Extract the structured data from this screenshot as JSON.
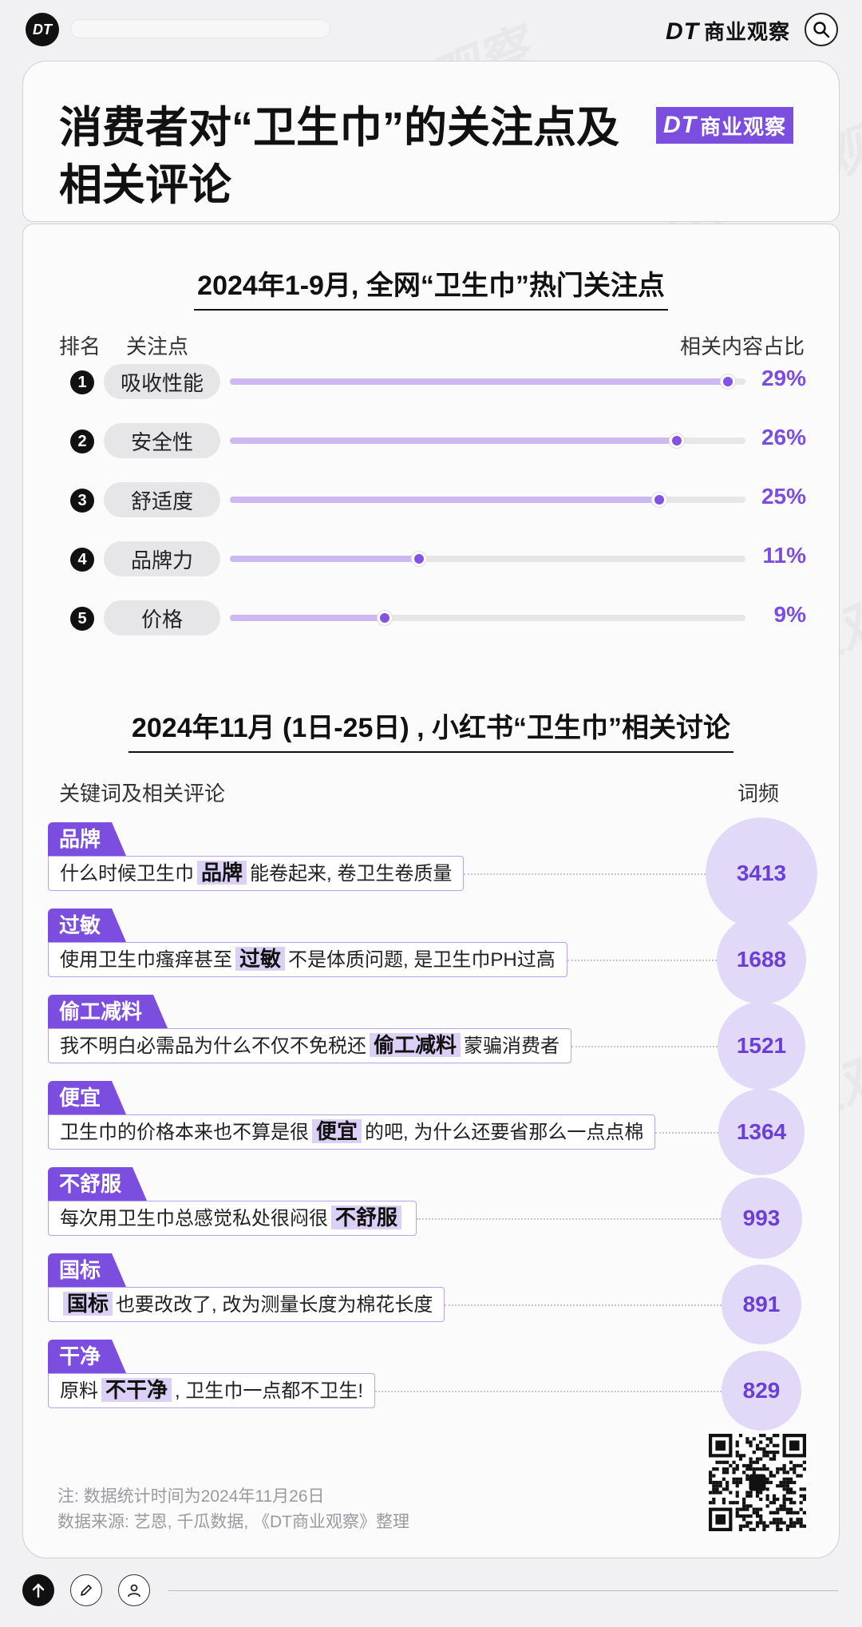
{
  "topbar": {
    "logo": "DT",
    "brand_prefix": "DT",
    "brand_name": "商业观察"
  },
  "header": {
    "title_line1": "消费者对“卫生巾”的关注点及",
    "title_line2": "相关评论",
    "badge_prefix": "DT",
    "badge_name": "商业观察"
  },
  "section1": {
    "title": "2024年1-9月, 全网“卫生巾”热门关注点",
    "col_rank": "排名",
    "col_focus": "关注点",
    "col_share": "相关内容占比"
  },
  "chart_data": [
    {
      "type": "bar",
      "title": "2024年1-9月, 全网“卫生巾”热门关注点",
      "ranks": [
        1,
        2,
        3,
        4,
        5
      ],
      "categories": [
        "吸收性能",
        "安全性",
        "舒适度",
        "品牌力",
        "价格"
      ],
      "values": [
        29,
        26,
        25,
        11,
        9
      ],
      "value_labels": [
        "29%",
        "26%",
        "25%",
        "11%",
        "9%"
      ],
      "unit": "%",
      "ylim": [
        0,
        30
      ],
      "colors": {
        "track": "#e6e6e8",
        "fill": "#cdb9f1",
        "dot": "#8154e3",
        "label": "#7b4ee0"
      }
    },
    {
      "type": "bubble",
      "title": "2024年11月 (1日-25日) , 小红书“卫生巾”相关讨论",
      "categories": [
        "品牌",
        "过敏",
        "偷工减料",
        "便宜",
        "不舒服",
        "国标",
        "干净"
      ],
      "values": [
        3413,
        1688,
        1521,
        1364,
        993,
        891,
        829
      ],
      "colors": {
        "tag": "#7b4ee0",
        "bubble": "#e2d9f8",
        "number": "#6a3fd6"
      }
    }
  ],
  "section2": {
    "title": "2024年11月 (1日-25日) , 小红书“卫生巾”相关讨论",
    "col_keyword": "关键词及相关评论",
    "col_freq": "词频",
    "items": [
      {
        "tag": "品牌",
        "before": "什么时候卫生巾",
        "keyword": "品牌",
        "after": "能卷起来, 卷卫生卷质量"
      },
      {
        "tag": "过敏",
        "before": "使用卫生巾瘙痒甚至",
        "keyword": "过敏",
        "after": "不是体质问题, 是卫生巾PH过高"
      },
      {
        "tag": "偷工减料",
        "before": "我不明白必需品为什么不仅不免税还",
        "keyword": "偷工减料",
        "after": "蒙骗消费者"
      },
      {
        "tag": "便宜",
        "before": "卫生巾的价格本来也不算是很",
        "keyword": "便宜",
        "after": "的吧, 为什么还要省那么一点点棉"
      },
      {
        "tag": "不舒服",
        "before": "每次用卫生巾总感觉私处很闷很",
        "keyword": "不舒服",
        "after": ""
      },
      {
        "tag": "国标",
        "before": "",
        "keyword": "国标",
        "after": "也要改改了, 改为测量长度为棉花长度"
      },
      {
        "tag": "干净",
        "before": "原料",
        "keyword": "不干净",
        "after": ", 卫生巾一点都不卫生!"
      }
    ]
  },
  "notes": {
    "line1": "注: 数据统计时间为2024年11月26日",
    "line2": "数据来源: 艺恩, 千瓜数据, 《DT商业观察》整理"
  }
}
